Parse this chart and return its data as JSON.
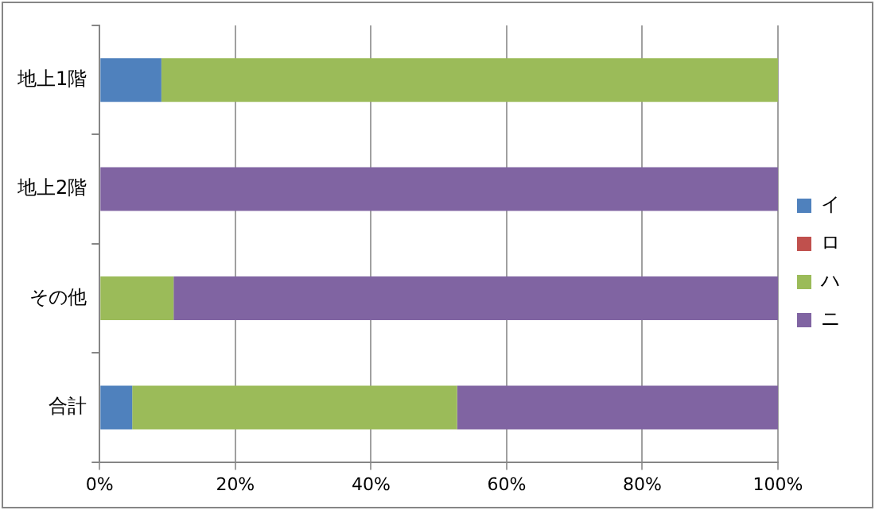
{
  "chart_data": {
    "type": "bar",
    "orientation": "horizontal",
    "stacked": true,
    "categories": [
      "地上1階",
      "地上2階",
      "その他",
      "合計"
    ],
    "series": [
      {
        "name": "イ",
        "color": "#4f81bd",
        "values": [
          9.1,
          0,
          0,
          4.8
        ]
      },
      {
        "name": "ロ",
        "color": "#c0504d",
        "values": [
          0,
          0,
          0,
          0
        ]
      },
      {
        "name": "ハ",
        "color": "#9bbb59",
        "values": [
          90.9,
          0,
          10.9,
          47.9
        ]
      },
      {
        "name": "ニ",
        "color": "#8064a2",
        "values": [
          0,
          100,
          89.1,
          47.3
        ]
      }
    ],
    "xlim": [
      0,
      100
    ],
    "xticks": [
      {
        "value": 0,
        "label": "0%"
      },
      {
        "value": 20,
        "label": "20%"
      },
      {
        "value": 40,
        "label": "40%"
      },
      {
        "value": 60,
        "label": "60%"
      },
      {
        "value": 80,
        "label": "80%"
      },
      {
        "value": 100,
        "label": "100%"
      }
    ],
    "grid": "x",
    "legend": "right"
  }
}
